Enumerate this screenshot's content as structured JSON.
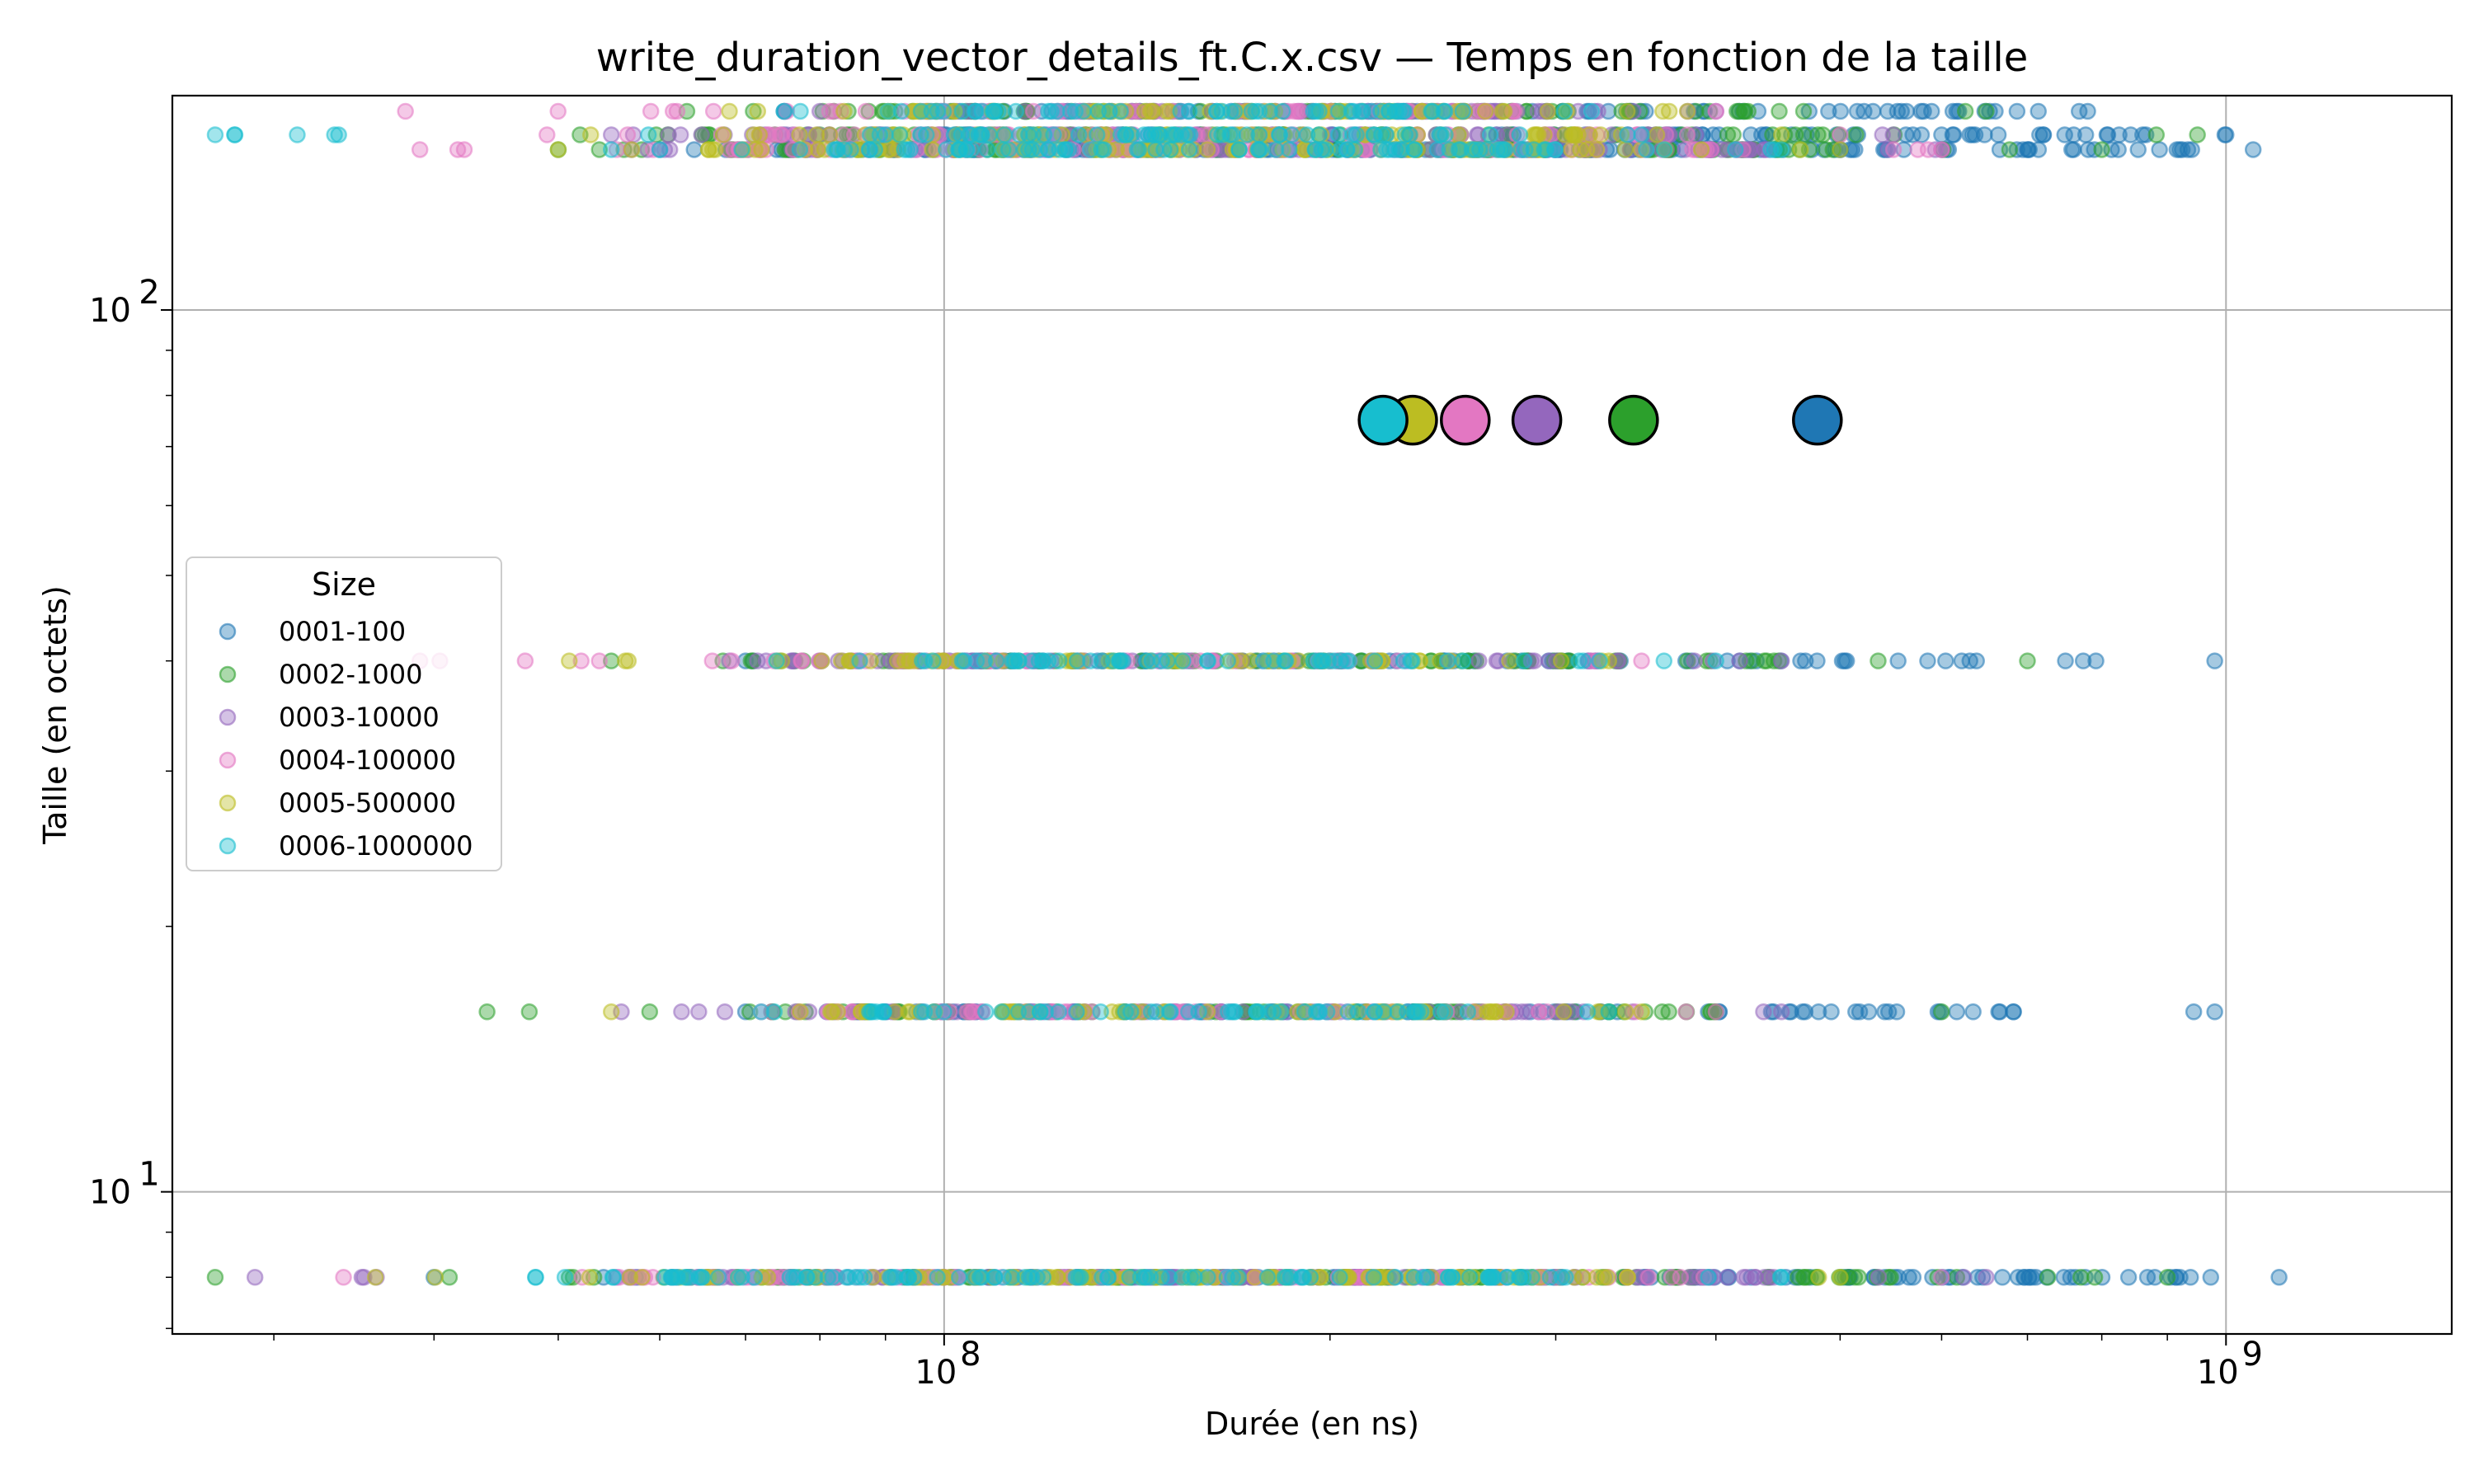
{
  "chart_data": {
    "type": "scatter",
    "title": "write_duration_vector_details_ft.C.x.csv — Temps en fonction de la taille",
    "xlabel": "Durée (en ns)",
    "ylabel": "Taille (en octets)",
    "x_scale": "log",
    "y_scale": "log",
    "xlim": [
      25000000,
      1500000000
    ],
    "ylim": [
      6.9,
      175
    ],
    "x_ticks": [
      {
        "value": 100000000,
        "base": "10",
        "exp": "8"
      },
      {
        "value": 1000000000,
        "base": "10",
        "exp": "9"
      }
    ],
    "y_ticks": [
      {
        "value": 10,
        "base": "10",
        "exp": "1"
      },
      {
        "value": 100,
        "base": "10",
        "exp": "2"
      }
    ],
    "grid": true,
    "legend": {
      "title": "Size",
      "placement": "center-left"
    },
    "series": [
      {
        "name": "0001-100",
        "color": "#1f77b4",
        "clusters": [
          {
            "y": 8,
            "x_range": [
              40000000,
              1100000000
            ],
            "dense_range": [
              90000000,
              950000000
            ],
            "count": 120
          },
          {
            "y": 16,
            "x_range": [
              70000000,
              980000000
            ],
            "dense_range": [
              85000000,
              700000000
            ],
            "count": 80
          },
          {
            "y": 40,
            "x_range": [
              70000000,
              980000000
            ],
            "dense_range": [
              85000000,
              700000000
            ],
            "count": 80
          },
          {
            "y": 152,
            "x_range": [
              60000000,
              1050000000
            ],
            "dense_range": [
              95000000,
              950000000
            ],
            "count": 120
          },
          {
            "y": 158,
            "x_range": [
              75000000,
              1000000000
            ],
            "dense_range": [
              95000000,
              900000000
            ],
            "count": 90
          },
          {
            "y": 168,
            "x_range": [
              75000000,
              780000000
            ],
            "dense_range": [
              95000000,
              700000000
            ],
            "count": 80
          }
        ],
        "mean": {
          "x": 480000000,
          "y": 75
        }
      },
      {
        "name": "0002-1000",
        "color": "#2ca02c",
        "clusters": [
          {
            "y": 8,
            "x_range": [
              27000000,
              900000000
            ],
            "dense_range": [
              60000000,
              550000000
            ],
            "count": 110
          },
          {
            "y": 16,
            "x_range": [
              44000000,
              600000000
            ],
            "dense_range": [
              70000000,
              400000000
            ],
            "count": 70
          },
          {
            "y": 40,
            "x_range": [
              55000000,
              700000000
            ],
            "dense_range": [
              70000000,
              450000000
            ],
            "count": 70
          },
          {
            "y": 152,
            "x_range": [
              50000000,
              800000000
            ],
            "dense_range": [
              65000000,
              500000000
            ],
            "count": 90
          },
          {
            "y": 158,
            "x_range": [
              52000000,
              950000000
            ],
            "dense_range": [
              65000000,
              500000000
            ],
            "count": 80
          },
          {
            "y": 168,
            "x_range": [
              63000000,
              650000000
            ],
            "dense_range": [
              75000000,
              450000000
            ],
            "count": 70
          }
        ],
        "mean": {
          "x": 345000000,
          "y": 75
        }
      },
      {
        "name": "0003-10000",
        "color": "#9467bd",
        "clusters": [
          {
            "y": 8,
            "x_range": [
              29000000,
              650000000
            ],
            "dense_range": [
              55000000,
              450000000
            ],
            "count": 100
          },
          {
            "y": 16,
            "x_range": [
              56000000,
              450000000
            ],
            "dense_range": [
              75000000,
              350000000
            ],
            "count": 60
          },
          {
            "y": 40,
            "x_range": [
              68000000,
              450000000
            ],
            "dense_range": [
              75000000,
              350000000
            ],
            "count": 60
          },
          {
            "y": 152,
            "x_range": [
              57000000,
              600000000
            ],
            "dense_range": [
              70000000,
              450000000
            ],
            "count": 80
          },
          {
            "y": 158,
            "x_range": [
              55000000,
              550000000
            ],
            "dense_range": [
              70000000,
              400000000
            ],
            "count": 70
          },
          {
            "y": 168,
            "x_range": [
              80000000,
              400000000
            ],
            "dense_range": [
              90000000,
              350000000
            ],
            "count": 60
          }
        ],
        "mean": {
          "x": 290000000,
          "y": 75
        }
      },
      {
        "name": "0004-100000",
        "color": "#e377c2",
        "clusters": [
          {
            "y": 8,
            "x_range": [
              34000000,
              600000000
            ],
            "dense_range": [
              55000000,
              400000000
            ],
            "count": 100
          },
          {
            "y": 16,
            "x_range": [
              72000000,
              400000000
            ],
            "dense_range": [
              78000000,
              300000000
            ],
            "count": 60
          },
          {
            "y": 40,
            "x_range": [
              39000000,
              350000000
            ],
            "dense_range": [
              65000000,
              260000000
            ],
            "count": 60
          },
          {
            "y": 152,
            "x_range": [
              39000000,
              600000000
            ],
            "dense_range": [
              65000000,
              420000000
            ],
            "count": 90
          },
          {
            "y": 158,
            "x_range": [
              49000000,
              500000000
            ],
            "dense_range": [
              65000000,
              380000000
            ],
            "count": 70
          },
          {
            "y": 168,
            "x_range": [
              38000000,
              400000000
            ],
            "dense_range": [
              80000000,
              300000000
            ],
            "count": 60
          }
        ],
        "mean": {
          "x": 255000000,
          "y": 75
        }
      },
      {
        "name": "0005-500000",
        "color": "#bcbd22",
        "clusters": [
          {
            "y": 8,
            "x_range": [
              36000000,
              500000000
            ],
            "dense_range": [
              55000000,
              350000000
            ],
            "count": 100
          },
          {
            "y": 16,
            "x_range": [
              55000000,
              350000000
            ],
            "dense_range": [
              75000000,
              280000000
            ],
            "count": 60
          },
          {
            "y": 40,
            "x_range": [
              51000000,
              330000000
            ],
            "dense_range": [
              80000000,
              250000000
            ],
            "count": 60
          },
          {
            "y": 152,
            "x_range": [
              50000000,
              500000000
            ],
            "dense_range": [
              65000000,
              350000000
            ],
            "count": 90
          },
          {
            "y": 158,
            "x_range": [
              53000000,
              450000000
            ],
            "dense_range": [
              70000000,
              320000000
            ],
            "count": 70
          },
          {
            "y": 168,
            "x_range": [
              68000000,
              380000000
            ],
            "dense_range": [
              80000000,
              300000000
            ],
            "count": 60
          }
        ],
        "mean": {
          "x": 232000000,
          "y": 75
        }
      },
      {
        "name": "0006-1000000",
        "color": "#17becf",
        "clusters": [
          {
            "y": 8,
            "x_range": [
              48000000,
              450000000
            ],
            "dense_range": [
              60000000,
              300000000
            ],
            "count": 110
          },
          {
            "y": 16,
            "x_range": [
              72000000,
              330000000
            ],
            "dense_range": [
              85000000,
              260000000
            ],
            "count": 60
          },
          {
            "y": 40,
            "x_range": [
              74000000,
              400000000
            ],
            "dense_range": [
              95000000,
              260000000
            ],
            "count": 60
          },
          {
            "y": 152,
            "x_range": [
              55000000,
              450000000
            ],
            "dense_range": [
              80000000,
              300000000
            ],
            "count": 90
          },
          {
            "y": 158,
            "x_range": [
              27000000,
              350000000
            ],
            "dense_range": [
              85000000,
              260000000
            ],
            "count": 70
          },
          {
            "y": 168,
            "x_range": [
              75000000,
              320000000
            ],
            "dense_range": [
              90000000,
              260000000
            ],
            "count": 60
          }
        ],
        "mean": {
          "x": 220000000,
          "y": 75
        }
      }
    ]
  }
}
